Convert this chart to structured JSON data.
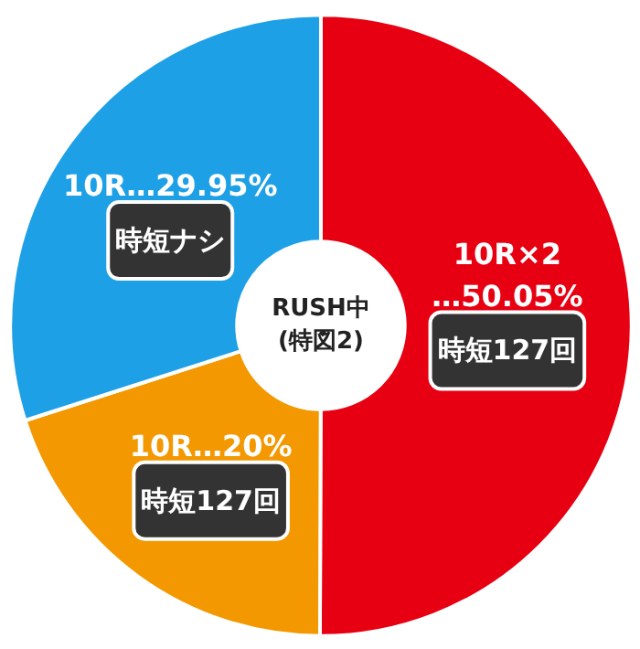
{
  "chart_data": {
    "type": "donut",
    "title": "RUSH中\n(特図2)",
    "categories": [
      "10R×2\n…50.05%",
      "10R…20%",
      "10R…29.95%"
    ],
    "values": [
      50.05,
      20,
      29.95
    ],
    "colors": [
      "#e60012",
      "#f39800",
      "#1ea0e6"
    ],
    "annotations": [
      "時短127回",
      "時短127回",
      "時短ナシ"
    ]
  }
}
